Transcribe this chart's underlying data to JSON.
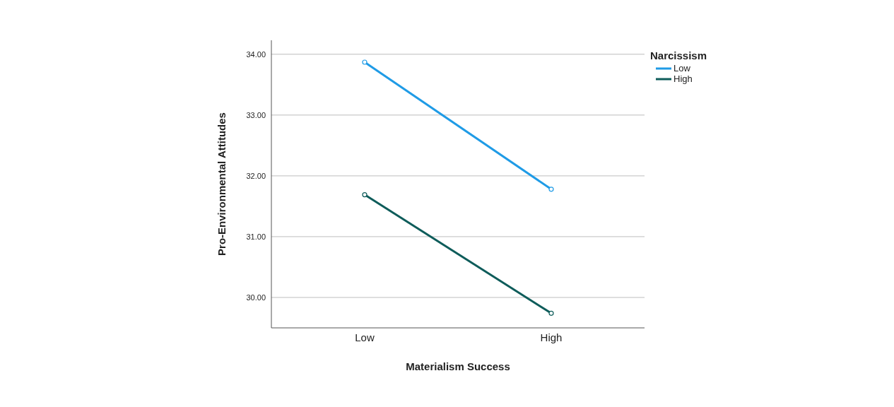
{
  "chart_data": {
    "type": "line",
    "xlabel": "Materialism Success",
    "ylabel": "Pro-Environmental Attitudes",
    "legend_title": "Narcissism",
    "categories": [
      "Low",
      "High"
    ],
    "series": [
      {
        "name": "Low",
        "color": "#1f9be6",
        "values": [
          33.87,
          31.78
        ]
      },
      {
        "name": "High",
        "color": "#0e5c5a",
        "values": [
          31.69,
          29.74
        ]
      }
    ],
    "ylim": [
      29.5,
      34.23
    ],
    "yticks": [
      {
        "value": 30,
        "label": "30.00"
      },
      {
        "value": 31,
        "label": "31.00"
      },
      {
        "value": 32,
        "label": "32.00"
      },
      {
        "value": 33,
        "label": "33.00"
      },
      {
        "value": 34,
        "label": "34.00"
      }
    ],
    "grid": "y",
    "legend": "top right",
    "marker": "circle",
    "line_style": "solid"
  }
}
